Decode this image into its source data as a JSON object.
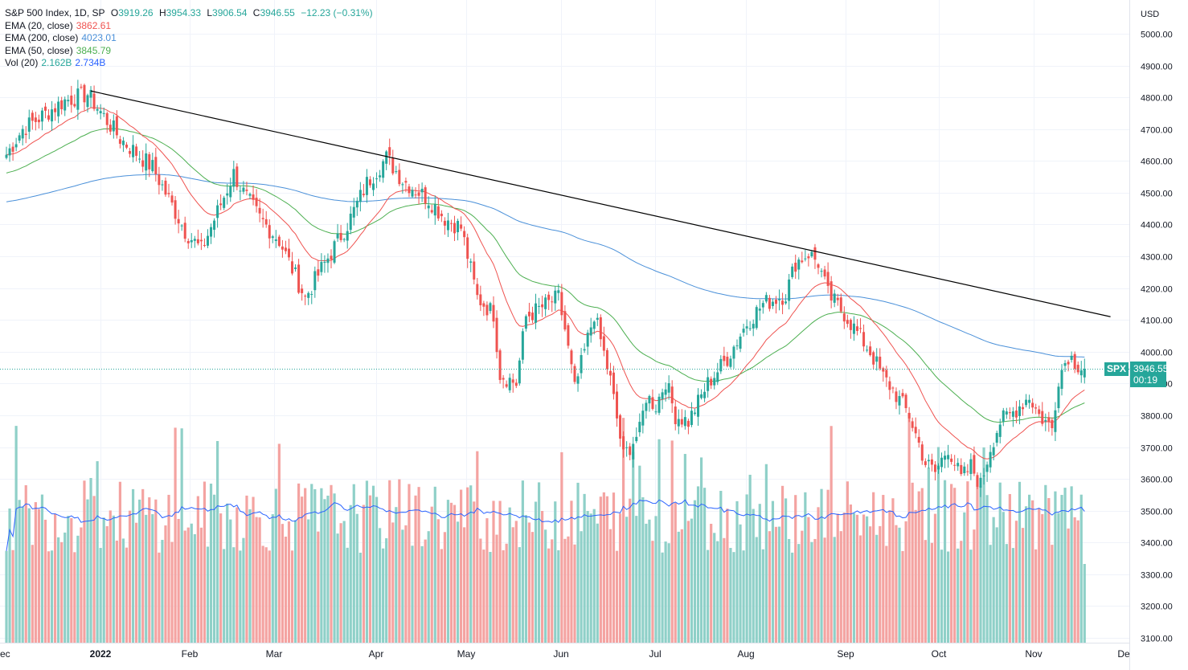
{
  "legend": {
    "symbol": "S&P 500 Index, 1D, SP",
    "o_label": "O",
    "o": "3919.26",
    "h_label": "H",
    "h": "3954.33",
    "l_label": "L",
    "l": "3906.54",
    "c_label": "C",
    "c": "3946.55",
    "change": "−12.23 (−0.31%)",
    "ema20_label": "EMA (20, close)",
    "ema20": "3862.61",
    "ema200_label": "EMA (200, close)",
    "ema200": "4023.01",
    "ema50_label": "EMA (50, close)",
    "ema50": "3845.79",
    "vol_label": "Vol (20)",
    "vol_a": "2.162B",
    "vol_b": "2.734B"
  },
  "currency": "USD",
  "last_price": "3946.55",
  "countdown": "00:19",
  "symbol_tag": "SPX",
  "colors": {
    "up": "#26a69a",
    "down": "#ef5350",
    "up_vol": "#8fd0c8",
    "down_vol": "#f4a3a1",
    "ema20": "#ef5350",
    "ema50": "#4caf50",
    "ema200": "#4a90d9",
    "vol_ma": "#2962ff",
    "trend": "#000000"
  },
  "chart_data": {
    "type": "candlestick",
    "y_ticks": [
      "5000.00",
      "4900.00",
      "4800.00",
      "4700.00",
      "4600.00",
      "4500.00",
      "4400.00",
      "4300.00",
      "4200.00",
      "4100.00",
      "4000.00",
      "3900.00",
      "3800.00",
      "3700.00",
      "3600.00",
      "3500.00",
      "3400.00",
      "3300.00",
      "3200.00",
      "3100.00"
    ],
    "x_ticks": [
      "ec",
      "2022",
      "Feb",
      "Mar",
      "Apr",
      "May",
      "Jun",
      "Jul",
      "Aug",
      "Sep",
      "Oct",
      "Nov",
      "De"
    ],
    "price_range": [
      3100,
      5050
    ],
    "anchors": [
      4620,
      4700,
      4790,
      4810,
      4740,
      4670,
      4580,
      4380,
      4320,
      4560,
      4500,
      4420,
      4350,
      4170,
      4260,
      4400,
      4530,
      4610,
      4540,
      4480,
      4420,
      4390,
      4170,
      4120,
      3930,
      3900,
      4110,
      4170,
      4070,
      3880,
      4000,
      4120,
      3910,
      3670,
      3750,
      3860,
      3830,
      3910,
      3800,
      3780,
      3900,
      3980,
      4090,
      4150,
      4180,
      4280,
      4310,
      4280,
      4180,
      4120,
      4060,
      4000,
      3920,
      3880,
      3800,
      3650,
      3620,
      3700,
      3600,
      3640,
      3580,
      3700,
      3780,
      3800,
      3830,
      3860,
      3800,
      3760,
      3920,
      3990,
      3960,
      3946.55
    ],
    "anchor_days": [
      0,
      5,
      18,
      25,
      30,
      35,
      45,
      55,
      60,
      70,
      73,
      78,
      84,
      92,
      97,
      105,
      111,
      117,
      122,
      130,
      135,
      140,
      145,
      150,
      152,
      157,
      160,
      170,
      172,
      175,
      178,
      181,
      186,
      190,
      195,
      197,
      200,
      203,
      206,
      210,
      216,
      222,
      228,
      233,
      240,
      243,
      247,
      250,
      253,
      258,
      262,
      266,
      270,
      273,
      278,
      283,
      286,
      290,
      294,
      297,
      300,
      303,
      306,
      309,
      312,
      315,
      318,
      322,
      324,
      327,
      330,
      332
    ],
    "ema20_last": 3862.61,
    "ema50_last": 3845.79,
    "ema200_last": 4023.01,
    "trendline": [
      {
        "day": 26,
        "price": 4820
      },
      {
        "day": 340,
        "price": 4110
      }
    ],
    "volume_avg_b": 2.162,
    "volume_last_b": 2.734
  }
}
